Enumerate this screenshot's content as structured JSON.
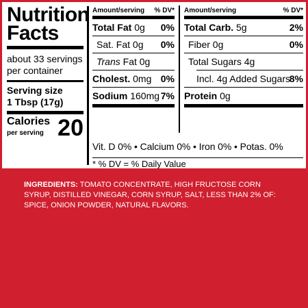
{
  "label": {
    "title_line1": "Nutrition",
    "title_line2": "Facts",
    "servings_line1": "about 33 servings",
    "servings_line2": "per container",
    "serving_size_label": "Serving size",
    "serving_size_value": "1 Tbsp (17g)",
    "calories_label": "Calories",
    "calories_sub": "per serving",
    "calories_value": "20"
  },
  "left_column": {
    "header_left": "Amount/serving",
    "header_right": "% DV*",
    "rows": [
      {
        "name": "Total Fat",
        "amount": "0g",
        "dv": "0%"
      },
      {
        "name": "Sat. Fat",
        "amount": "0g",
        "dv": "0%"
      },
      {
        "name": "Trans",
        "amount": "Fat 0g",
        "dv": ""
      },
      {
        "name": "Cholest.",
        "amount": "0mg",
        "dv": "0%"
      },
      {
        "name": "Sodium",
        "amount": "160mg",
        "dv": "7%"
      }
    ]
  },
  "right_column": {
    "header_left": "Amount/serving",
    "header_right": "% DV*",
    "rows": [
      {
        "name": "Total Carb.",
        "amount": "5g",
        "dv": "2%"
      },
      {
        "name": "Fiber",
        "amount": "0g",
        "dv": "0%"
      },
      {
        "name": "Total Sugars",
        "amount": "4g",
        "dv": ""
      },
      {
        "name": "Incl. 4g Added Sugars",
        "amount": "",
        "dv": "8%"
      },
      {
        "name": "Protein",
        "amount": "0g",
        "dv": ""
      }
    ]
  },
  "vitamins": "Vit. D 0% • Calcium 0% • Iron 0% • Potas. 0%",
  "footnote": "* % DV = % Daily Value",
  "ingredients": {
    "label": "INGREDIENTS:",
    "text": " TOMATO CONCENTRATE, HIGH FRUCTOSE CORN SYRUP, DISTILLED VINEGAR, CORN SYRUP, SALT, LESS THAN 2% OF: SPICE, ONION POWDER, NATURAL FLAVORS."
  },
  "colors": {
    "background": "#d01f2f",
    "panel": "#ffffff",
    "text": "#000000"
  }
}
